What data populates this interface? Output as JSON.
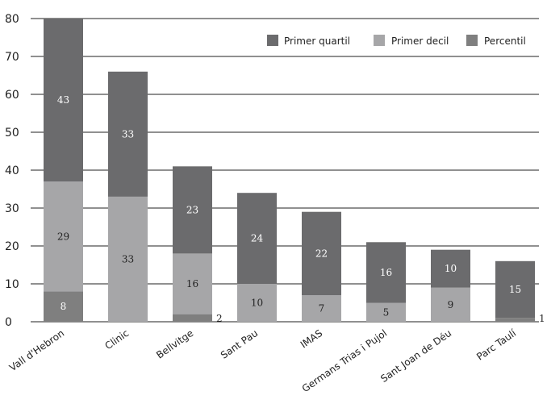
{
  "chart_data": {
    "type": "bar",
    "stacked": true,
    "title": "",
    "xlabel": "",
    "ylabel": "",
    "ylim": [
      0,
      80
    ],
    "yticks": [
      0,
      10,
      20,
      30,
      40,
      50,
      60,
      70,
      80
    ],
    "grid": true,
    "legend_position": "top-right",
    "categories": [
      "Vall d'Hebron",
      "Clinic",
      "Bellvitge",
      "Sant Pau",
      "IMAS",
      "Germans Trias i Pujol",
      "Sant Joan de Déu",
      "Parc Taulí"
    ],
    "series": [
      {
        "name": "Percentil",
        "values": [
          8,
          0,
          2,
          0,
          0,
          0,
          0,
          1
        ],
        "labels": [
          "8",
          "",
          "2",
          "",
          "",
          "",
          "",
          "1"
        ],
        "color": "#7f7f7f"
      },
      {
        "name": "Primer decil",
        "values": [
          29,
          33,
          16,
          10,
          7,
          5,
          9,
          0
        ],
        "labels": [
          "29",
          "33",
          "16",
          "10",
          "7",
          "5",
          "9",
          ""
        ],
        "color": "#a6a6a8"
      },
      {
        "name": "Primer quartil",
        "values": [
          43,
          33,
          23,
          24,
          22,
          16,
          10,
          15
        ],
        "labels": [
          "43",
          "33",
          "23",
          "24",
          "22",
          "16",
          "10",
          "15"
        ],
        "color": "#6b6b6d"
      }
    ],
    "legend": [
      "Primer quartil",
      "Primer decil",
      "Percentil"
    ],
    "colors": {
      "grid": "#222222",
      "label_on_dark": "#ffffff",
      "label_on_light": "#222222"
    }
  }
}
